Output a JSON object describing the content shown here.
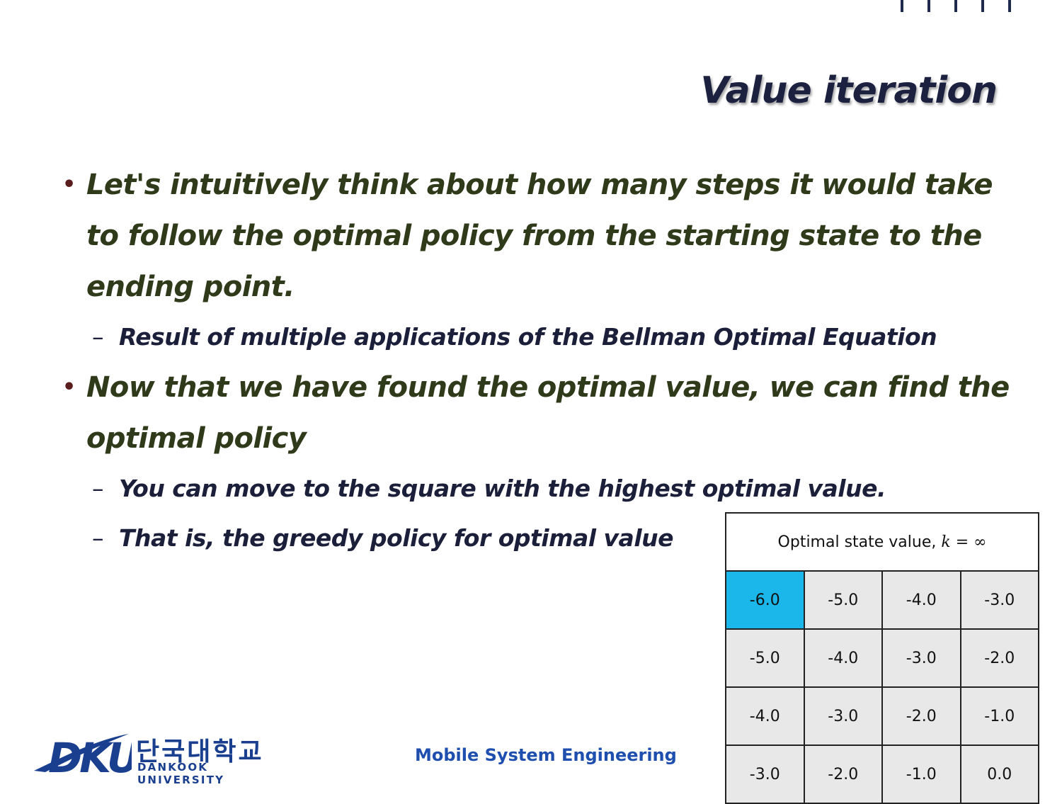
{
  "slide": {
    "title": "Value iteration",
    "bullets": [
      {
        "text": "Let's intuitively think about how many steps it would take to follow the optimal policy from the starting state to the ending point.",
        "subs": [
          "Result of multiple applications of the Bellman Optimal Equation"
        ]
      },
      {
        "text": "Now that we have found the optimal value, we can find the optimal policy",
        "subs": [
          "You can move to the square with the highest optimal value.",
          "That is, the greedy policy for optimal value"
        ]
      }
    ],
    "bullet_marker": "•",
    "sub_marker": "–"
  },
  "grid": {
    "caption_text": "Optimal state value,",
    "caption_math": "k = ∞",
    "highlight_color": "#1bb7ea",
    "rows": [
      [
        "-6.0",
        "-5.0",
        "-4.0",
        "-3.0"
      ],
      [
        "-5.0",
        "-4.0",
        "-3.0",
        "-2.0"
      ],
      [
        "-4.0",
        "-3.0",
        "-2.0",
        "-1.0"
      ],
      [
        "-3.0",
        "-2.0",
        "-1.0",
        "0.0"
      ]
    ]
  },
  "footer": {
    "logo_mark": "DKU",
    "university_korean": "단국대학교",
    "university_english": "DANKOOK UNIVERSITY",
    "course": "Mobile System Engineering"
  }
}
